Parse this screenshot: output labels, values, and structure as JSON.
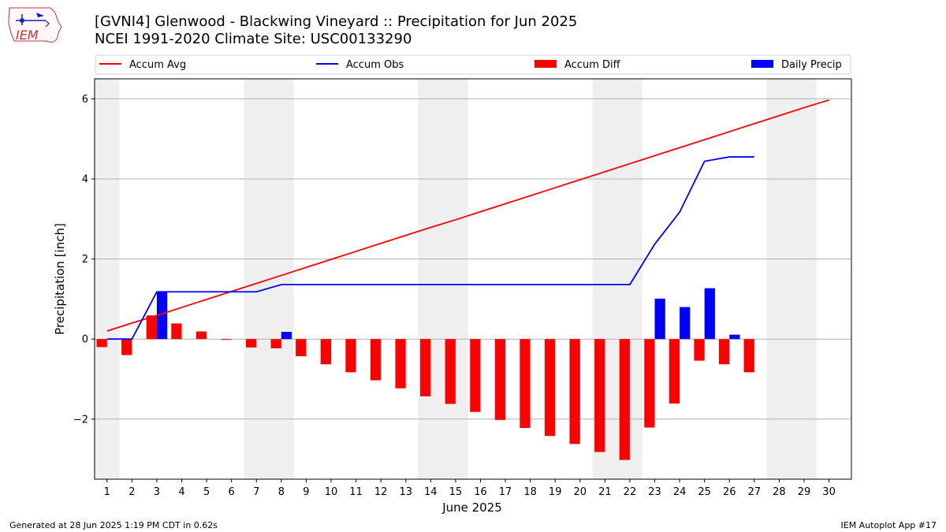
{
  "header": {
    "title_line1": "[GVNI4] Glenwood - Blackwing Vineyard :: Precipitation for Jun 2025",
    "title_line2": "NCEI 1991-2020 Climate Site: USC00133290",
    "logo_text": "IEM"
  },
  "footer": {
    "generated": "Generated at 28 Jun 2025 1:19 PM CDT in 0.62s",
    "app": "IEM Autoplot App #17"
  },
  "colors": {
    "accum_avg": "#ff0000",
    "accum_obs": "#0000ff",
    "accum_diff": "#ff0000",
    "daily_precip": "#0000ff",
    "weekend_shade": "#efefef",
    "grid": "#b0b0b0"
  },
  "chart_data": {
    "type": "bar",
    "xlabel": "June 2025",
    "ylabel": "Precipitation [inch]",
    "ylim": [
      -3.5,
      6.5
    ],
    "yticks": [
      -2,
      0,
      2,
      4,
      6
    ],
    "grid": "horizontal",
    "legend_placement": "top",
    "legend": [
      "Accum Avg",
      "Accum Obs",
      "Accum Diff",
      "Daily Precip"
    ],
    "days": [
      1,
      2,
      3,
      4,
      5,
      6,
      7,
      8,
      9,
      10,
      11,
      12,
      13,
      14,
      15,
      16,
      17,
      18,
      19,
      20,
      21,
      22,
      23,
      24,
      25,
      26,
      27,
      28,
      29,
      30
    ],
    "weekend_shading": [
      [
        1,
        1
      ],
      [
        7,
        8
      ],
      [
        14,
        15
      ],
      [
        21,
        22
      ],
      [
        28,
        29
      ]
    ],
    "series": [
      {
        "name": "Accum Avg",
        "kind": "line",
        "values": [
          0.2,
          0.4,
          0.59,
          0.79,
          0.99,
          1.19,
          1.39,
          1.59,
          1.79,
          1.99,
          2.19,
          2.39,
          2.59,
          2.79,
          2.98,
          3.18,
          3.38,
          3.58,
          3.78,
          3.98,
          4.18,
          4.38,
          4.58,
          4.78,
          4.98,
          5.18,
          5.38,
          5.58,
          5.78,
          5.97
        ]
      },
      {
        "name": "Accum Obs",
        "kind": "line",
        "values": [
          0.0,
          0.0,
          1.18,
          1.18,
          1.18,
          1.18,
          1.18,
          1.36,
          1.36,
          1.36,
          1.36,
          1.36,
          1.36,
          1.36,
          1.36,
          1.36,
          1.36,
          1.36,
          1.36,
          1.36,
          1.36,
          1.36,
          2.37,
          3.17,
          4.44,
          4.55,
          4.55
        ]
      },
      {
        "name": "Accum Diff",
        "kind": "bar",
        "values": [
          -0.2,
          -0.4,
          0.59,
          0.39,
          0.19,
          -0.01,
          -0.21,
          -0.23,
          -0.43,
          -0.63,
          -0.83,
          -1.03,
          -1.23,
          -1.43,
          -1.62,
          -1.82,
          -2.02,
          -2.22,
          -2.42,
          -2.62,
          -2.82,
          -3.02,
          -2.21,
          -1.61,
          -0.54,
          -0.63,
          -0.83
        ]
      },
      {
        "name": "Daily Precip",
        "kind": "bar",
        "values": [
          0,
          0,
          1.18,
          0,
          0,
          0,
          0,
          0.18,
          0,
          0,
          0,
          0,
          0,
          0,
          0,
          0,
          0,
          0,
          0,
          0,
          0,
          0,
          1.01,
          0.8,
          1.27,
          0.11,
          0
        ]
      }
    ]
  }
}
